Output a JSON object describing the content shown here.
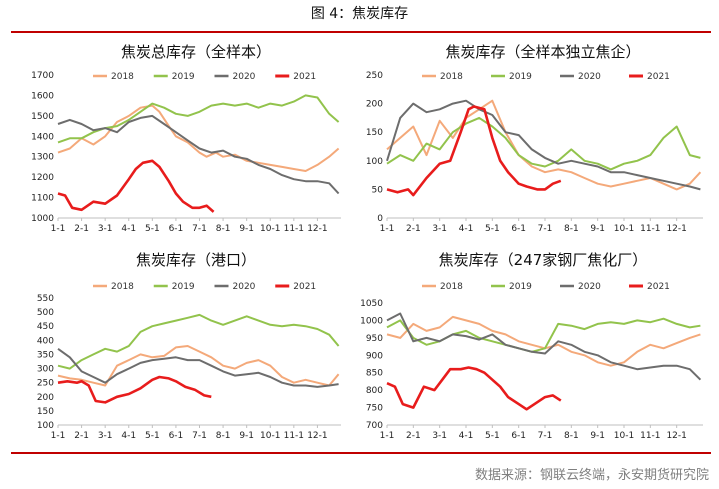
{
  "figure_title": "图 4：焦炭库存",
  "source": "数据来源：钢联云终端，永安期货研究院",
  "colors": {
    "2018": "#f4a97a",
    "2019": "#92c34c",
    "2020": "#6d6d6d",
    "2021": "#e81c1c"
  },
  "chart_data": [
    {
      "type": "line",
      "title": "焦炭总库存（全样本）",
      "categories": [
        "1-1",
        "2-1",
        "3-1",
        "4-1",
        "5-1",
        "6-1",
        "7-1",
        "8-1",
        "9-1",
        "10-1",
        "11-1",
        "12-1"
      ],
      "ylim": [
        1000,
        1700
      ],
      "yticks": [
        1000,
        1100,
        1200,
        1300,
        1400,
        1500,
        1600,
        1700
      ],
      "series": [
        {
          "name": "2018",
          "x": [
            0,
            0.5,
            1,
            1.5,
            2,
            2.5,
            3,
            3.5,
            4,
            4.3,
            4.7,
            5,
            5.5,
            6,
            6.3,
            6.7,
            7,
            7.5,
            8,
            8.5,
            9,
            9.5,
            10,
            10.5,
            11,
            11.5,
            11.9
          ],
          "y": [
            1320,
            1340,
            1390,
            1360,
            1400,
            1470,
            1500,
            1540,
            1550,
            1520,
            1450,
            1400,
            1370,
            1320,
            1300,
            1320,
            1300,
            1310,
            1280,
            1270,
            1260,
            1250,
            1240,
            1230,
            1260,
            1300,
            1340
          ]
        },
        {
          "name": "2019",
          "x": [
            0,
            0.5,
            1,
            1.5,
            2,
            2.5,
            3,
            3.5,
            4,
            4.5,
            5,
            5.5,
            6,
            6.5,
            7,
            7.5,
            8,
            8.5,
            9,
            9.5,
            10,
            10.5,
            11,
            11.5,
            11.9
          ],
          "y": [
            1370,
            1390,
            1390,
            1420,
            1440,
            1450,
            1480,
            1520,
            1560,
            1540,
            1510,
            1500,
            1520,
            1550,
            1560,
            1550,
            1560,
            1540,
            1560,
            1550,
            1570,
            1600,
            1590,
            1510,
            1470
          ]
        },
        {
          "name": "2020",
          "x": [
            0,
            0.5,
            1,
            1.5,
            2,
            2.5,
            3,
            3.5,
            4,
            4.5,
            5,
            5.5,
            6,
            6.5,
            7,
            7.5,
            8,
            8.5,
            9,
            9.5,
            10,
            10.5,
            11,
            11.5,
            11.9
          ],
          "y": [
            1460,
            1480,
            1460,
            1430,
            1440,
            1420,
            1470,
            1490,
            1500,
            1460,
            1420,
            1380,
            1340,
            1320,
            1330,
            1300,
            1290,
            1260,
            1240,
            1210,
            1190,
            1180,
            1180,
            1170,
            1120
          ]
        },
        {
          "name": "2021",
          "x": [
            0,
            0.3,
            0.6,
            1,
            1.5,
            2,
            2.5,
            3,
            3.3,
            3.6,
            4,
            4.3,
            4.7,
            5,
            5.3,
            5.7,
            6,
            6.3,
            6.6
          ],
          "y": [
            1120,
            1110,
            1050,
            1040,
            1080,
            1070,
            1110,
            1190,
            1240,
            1270,
            1280,
            1250,
            1180,
            1120,
            1080,
            1050,
            1050,
            1060,
            1030
          ]
        }
      ]
    },
    {
      "type": "line",
      "title": "焦炭库存（全样本独立焦企）",
      "categories": [
        "1-1",
        "2-1",
        "3-1",
        "4-1",
        "5-1",
        "6-1",
        "7-1",
        "8-1",
        "9-1",
        "10-1",
        "11-1",
        "12-1"
      ],
      "ylim": [
        0,
        250
      ],
      "yticks": [
        0,
        50,
        100,
        150,
        200,
        250
      ],
      "series": [
        {
          "name": "2018",
          "x": [
            0,
            0.5,
            1,
            1.5,
            2,
            2.5,
            3,
            3.5,
            4,
            4.5,
            5,
            5.5,
            6,
            6.5,
            7,
            7.5,
            8,
            8.5,
            9,
            9.5,
            10,
            10.5,
            11,
            11.5,
            11.9
          ],
          "y": [
            120,
            140,
            160,
            110,
            170,
            140,
            175,
            190,
            205,
            150,
            110,
            90,
            80,
            85,
            80,
            70,
            60,
            55,
            60,
            65,
            70,
            60,
            50,
            60,
            80
          ]
        },
        {
          "name": "2019",
          "x": [
            0,
            0.5,
            1,
            1.5,
            2,
            2.5,
            3,
            3.5,
            4,
            4.5,
            5,
            5.5,
            6,
            6.5,
            7,
            7.5,
            8,
            8.5,
            9,
            9.5,
            10,
            10.5,
            11,
            11.5,
            11.9
          ],
          "y": [
            95,
            110,
            100,
            130,
            120,
            150,
            165,
            175,
            160,
            140,
            110,
            95,
            90,
            100,
            120,
            100,
            95,
            85,
            95,
            100,
            110,
            140,
            160,
            110,
            105
          ]
        },
        {
          "name": "2020",
          "x": [
            0,
            0.5,
            1,
            1.5,
            2,
            2.5,
            3,
            3.5,
            4,
            4.5,
            5,
            5.5,
            6,
            6.5,
            7,
            7.5,
            8,
            8.5,
            9,
            9.5,
            10,
            10.5,
            11,
            11.5,
            11.9
          ],
          "y": [
            100,
            175,
            200,
            185,
            190,
            200,
            205,
            190,
            180,
            150,
            145,
            120,
            105,
            95,
            100,
            95,
            90,
            80,
            80,
            75,
            70,
            65,
            60,
            55,
            50
          ]
        },
        {
          "name": "2021",
          "x": [
            0,
            0.4,
            0.8,
            1,
            1.5,
            2,
            2.4,
            2.8,
            3.1,
            3.3,
            3.7,
            4,
            4.3,
            4.6,
            5,
            5.3,
            5.7,
            6,
            6.3,
            6.6
          ],
          "y": [
            50,
            45,
            50,
            40,
            70,
            95,
            100,
            150,
            190,
            195,
            190,
            140,
            100,
            80,
            60,
            55,
            50,
            50,
            60,
            65
          ]
        }
      ]
    },
    {
      "type": "line",
      "title": "焦炭库存（港口）",
      "categories": [
        "1-1",
        "2-1",
        "3-1",
        "4-1",
        "5-1",
        "6-1",
        "7-1",
        "8-1",
        "9-1",
        "10-1",
        "11-1",
        "12-1"
      ],
      "ylim": [
        100,
        550
      ],
      "yticks": [
        100,
        150,
        200,
        250,
        300,
        350,
        400,
        450,
        500,
        550
      ],
      "series": [
        {
          "name": "2018",
          "x": [
            0,
            0.5,
            1,
            1.5,
            2,
            2.5,
            3,
            3.5,
            4,
            4.5,
            5,
            5.5,
            6,
            6.5,
            7,
            7.5,
            8,
            8.5,
            9,
            9.5,
            10,
            10.5,
            11,
            11.5,
            11.9
          ],
          "y": [
            275,
            265,
            260,
            250,
            240,
            310,
            330,
            350,
            340,
            345,
            375,
            380,
            360,
            340,
            310,
            300,
            320,
            330,
            310,
            270,
            250,
            260,
            250,
            240,
            280
          ]
        },
        {
          "name": "2019",
          "x": [
            0,
            0.5,
            1,
            1.5,
            2,
            2.5,
            3,
            3.5,
            4,
            4.5,
            5,
            5.5,
            6,
            6.5,
            7,
            7.5,
            8,
            8.5,
            9,
            9.5,
            10,
            10.5,
            11,
            11.5,
            11.9
          ],
          "y": [
            310,
            300,
            330,
            350,
            370,
            360,
            380,
            430,
            450,
            460,
            470,
            480,
            490,
            470,
            455,
            470,
            485,
            470,
            455,
            450,
            455,
            450,
            440,
            420,
            380
          ]
        },
        {
          "name": "2020",
          "x": [
            0,
            0.5,
            1,
            1.5,
            2,
            2.5,
            3,
            3.5,
            4,
            4.5,
            5,
            5.5,
            6,
            6.5,
            7,
            7.5,
            8,
            8.5,
            9,
            9.5,
            10,
            10.5,
            11,
            11.5,
            11.9
          ],
          "y": [
            370,
            340,
            290,
            270,
            250,
            280,
            300,
            320,
            330,
            335,
            340,
            330,
            330,
            310,
            290,
            275,
            280,
            285,
            270,
            250,
            240,
            240,
            235,
            240,
            245
          ]
        },
        {
          "name": "2021",
          "x": [
            0,
            0.4,
            0.8,
            1,
            1.3,
            1.6,
            2,
            2.5,
            3,
            3.5,
            4,
            4.3,
            4.7,
            5,
            5.4,
            5.8,
            6.2,
            6.5
          ],
          "y": [
            250,
            255,
            250,
            255,
            240,
            185,
            180,
            200,
            210,
            230,
            260,
            270,
            265,
            255,
            235,
            225,
            205,
            200
          ]
        }
      ]
    },
    {
      "type": "line",
      "title": "焦炭库存（247家钢厂焦化厂）",
      "categories": [
        "1-1",
        "2-1",
        "3-1",
        "4-1",
        "5-1",
        "6-1",
        "7-1",
        "8-1",
        "9-1",
        "10-1",
        "11-1",
        "12-1"
      ],
      "ylim": [
        700,
        1050
      ],
      "yticks": [
        700,
        750,
        800,
        850,
        900,
        950,
        1000,
        1050
      ],
      "series": [
        {
          "name": "2018",
          "x": [
            0,
            0.5,
            1,
            1.5,
            2,
            2.5,
            3,
            3.5,
            4,
            4.5,
            5,
            5.5,
            6,
            6.5,
            7,
            7.5,
            8,
            8.5,
            9,
            9.5,
            10,
            10.5,
            11,
            11.5,
            11.9
          ],
          "y": [
            960,
            950,
            990,
            970,
            980,
            1010,
            1000,
            990,
            970,
            960,
            940,
            930,
            920,
            930,
            910,
            900,
            880,
            870,
            880,
            910,
            930,
            920,
            935,
            950,
            960
          ]
        },
        {
          "name": "2019",
          "x": [
            0,
            0.5,
            1,
            1.5,
            2,
            2.5,
            3,
            3.5,
            4,
            4.5,
            5,
            5.5,
            6,
            6.5,
            7,
            7.5,
            8,
            8.5,
            9,
            9.5,
            10,
            10.5,
            11,
            11.5,
            11.9
          ],
          "y": [
            980,
            1000,
            950,
            930,
            940,
            960,
            970,
            950,
            940,
            930,
            920,
            910,
            920,
            990,
            985,
            975,
            990,
            995,
            990,
            1000,
            995,
            1005,
            990,
            980,
            985
          ]
        },
        {
          "name": "2020",
          "x": [
            0,
            0.5,
            1,
            1.5,
            2,
            2.5,
            3,
            3.5,
            4,
            4.5,
            5,
            5.5,
            6,
            6.5,
            7,
            7.5,
            8,
            8.5,
            9,
            9.5,
            10,
            10.5,
            11,
            11.5,
            11.9
          ],
          "y": [
            1000,
            1020,
            940,
            950,
            940,
            960,
            955,
            945,
            960,
            930,
            920,
            910,
            905,
            940,
            930,
            910,
            900,
            880,
            870,
            860,
            865,
            870,
            870,
            860,
            830
          ]
        },
        {
          "name": "2021",
          "x": [
            0,
            0.3,
            0.6,
            1,
            1.4,
            1.8,
            2.1,
            2.4,
            2.8,
            3.1,
            3.4,
            3.7,
            4,
            4.3,
            4.6,
            5,
            5.3,
            5.6,
            6,
            6.3,
            6.6
          ],
          "y": [
            820,
            810,
            760,
            750,
            810,
            800,
            830,
            860,
            860,
            865,
            860,
            850,
            830,
            810,
            780,
            760,
            745,
            760,
            780,
            785,
            770
          ]
        }
      ]
    }
  ]
}
